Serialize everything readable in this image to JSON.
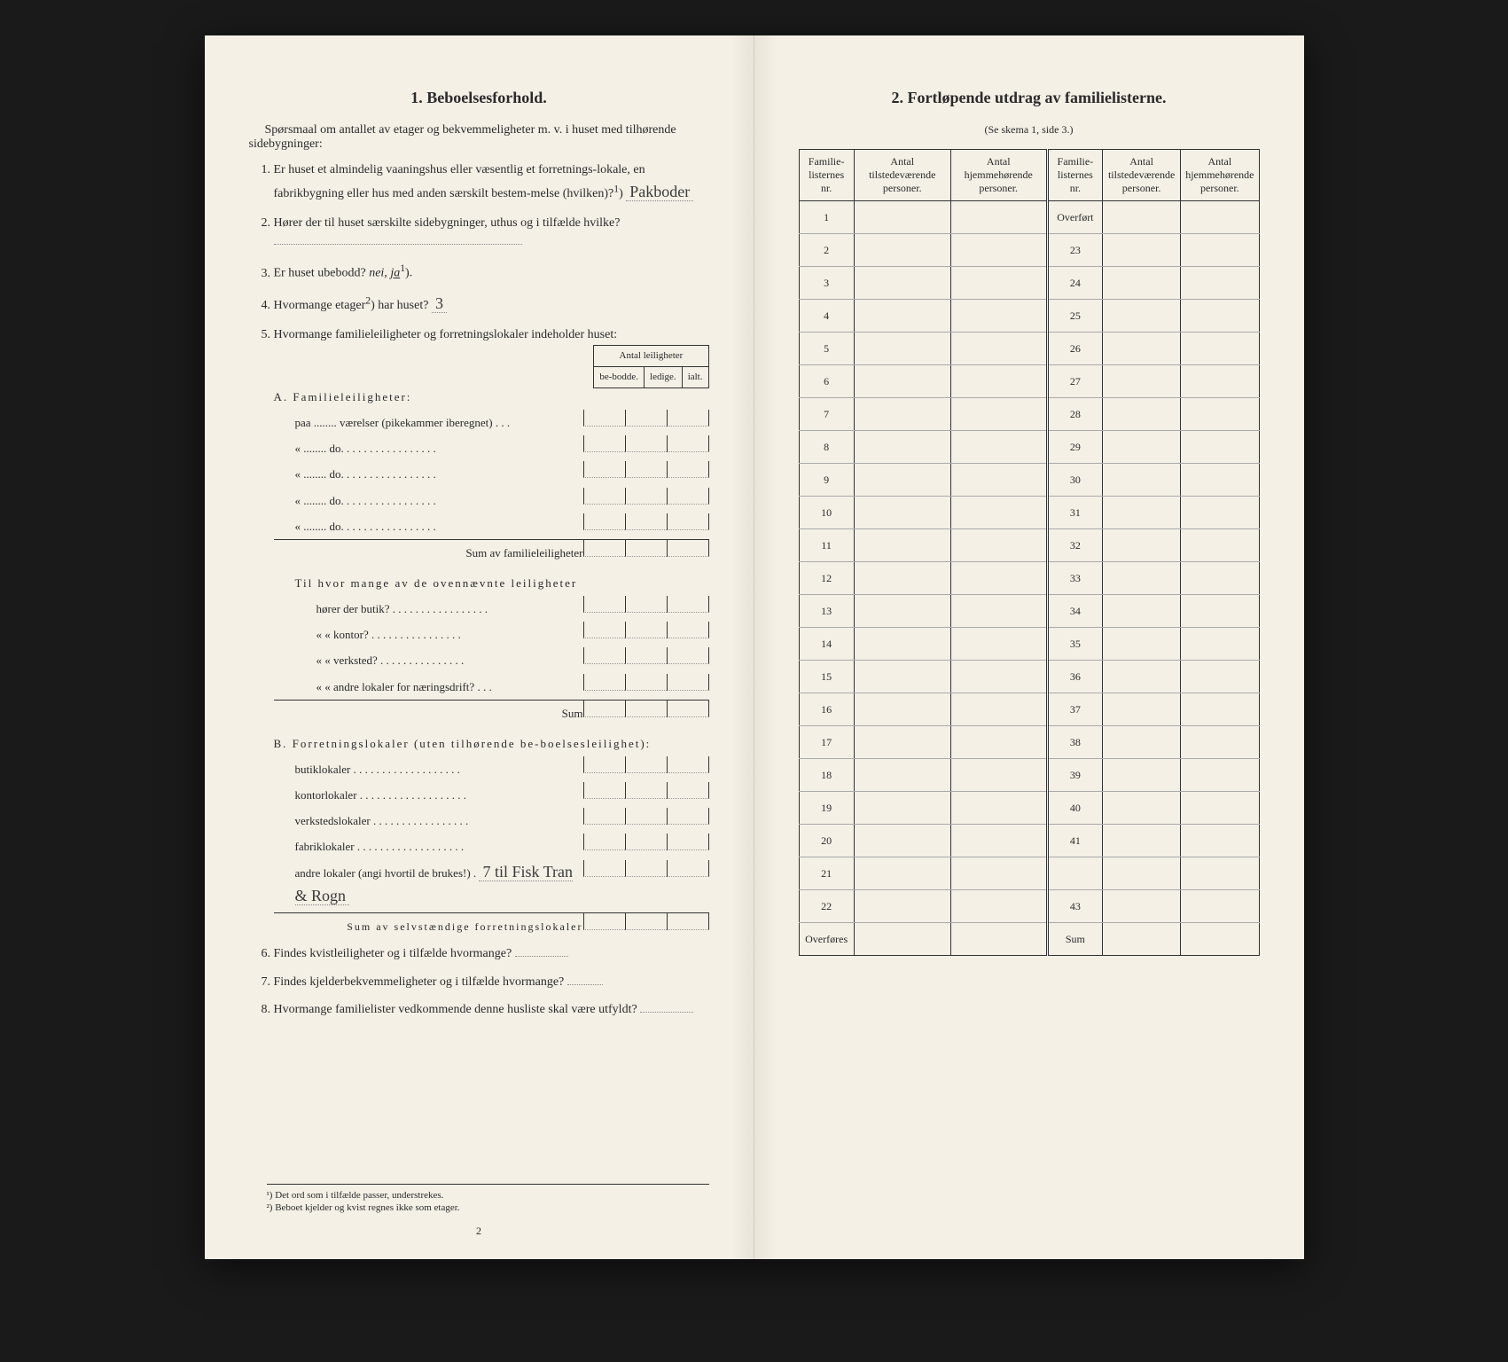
{
  "leftPage": {
    "title": "1.   Beboelsesforhold.",
    "intro": "Spørsmaal om antallet av etager og bekvemmeligheter m. v. i huset med tilhørende sidebygninger:",
    "q1": {
      "text_a": "Er huset et almindelig vaaningshus eller væsentlig et forretnings-lokale, en fabrikbygning eller hus med anden særskilt bestem-melse (hvilken)?",
      "sup": "1",
      "answer": "Pakboder"
    },
    "q2": "Hører der til huset særskilte sidebygninger, uthus og i tilfælde hvilke?",
    "q3": {
      "text": "Er huset ubebodd?",
      "options": "nei, ja",
      "sup": "1",
      "selected": "ja"
    },
    "q4": {
      "text": "Hvormange etager",
      "sup": "2",
      "text2": ") har huset?",
      "answer": "3"
    },
    "q5": {
      "text": "Hvormange familieleiligheter og forretningslokaler indeholder huset:",
      "tableHeader": "Antal leiligheter",
      "cols": [
        "be-bodde.",
        "ledige.",
        "ialt."
      ],
      "sectionA": {
        "title": "A. Familieleiligheter:",
        "rows": [
          "paa ........ værelser (pikekammer iberegnet) . . .",
          "«   ........   do.   . . . . . . . . . . . . . . . .",
          "«   ........   do.   . . . . . . . . . . . . . . . .",
          "«   ........   do.   . . . . . . . . . . . . . . . .",
          "«   ........   do.   . . . . . . . . . . . . . . . ."
        ],
        "sum": "Sum av familieleiligheter"
      },
      "sectionMid": {
        "intro": "Til hvor mange av de ovennævnte leiligheter",
        "rows": [
          "hører der butik? . . . . . . . . . . . . . . . . .",
          "«     «  kontor? . . . . . . . . . . . . . . . .",
          "«     «  verksted? . . . . . . . . . . . . . . .",
          "«     «  andre lokaler for næringsdrift? . . ."
        ],
        "sum": "Sum"
      },
      "sectionB": {
        "title": "B. Forretningslokaler (uten tilhørende be-boelsesleilighet):",
        "rows": [
          "butiklokaler . . . . . . . . . . . . . . . . . . .",
          "kontorlokaler . . . . . . . . . . . . . . . . . . .",
          "verkstedslokaler . . . . . . . . . . . . . . . . .",
          "fabriklokaler . . . . . . . . . . . . . . . . . . .",
          "andre lokaler (angi hvortil de brukes!) ."
        ],
        "handAnswer": "7 til Fisk Tran & Rogn",
        "sum": "Sum av selvstændige forretningslokaler"
      }
    },
    "q6": "Findes kvistleiligheter og i tilfælde hvormange?",
    "q7": "Findes kjelderbekvemmeligheter og i tilfælde hvormange?",
    "q8": "Hvormange familielister vedkommende denne husliste skal være utfyldt?",
    "footnotes": [
      "¹) Det ord som i tilfælde passer, understrekes.",
      "²) Beboet kjelder og kvist regnes ikke som etager."
    ],
    "pageNum": "2"
  },
  "rightPage": {
    "title": "2.   Fortløpende utdrag av familielisterne.",
    "subtitle": "(Se skema 1, side 3.)",
    "headers": {
      "c1": "Familie-listernes nr.",
      "c2": "Antal tilstedeværende personer.",
      "c3": "Antal hjemmehørende personer.",
      "c4": "Familie-listernes nr.",
      "c5": "Antal tilstedeværende personer.",
      "c6": "Antal hjemmehørende personer."
    },
    "leftCol": [
      "1",
      "2",
      "3",
      "4",
      "5",
      "6",
      "7",
      "8",
      "9",
      "10",
      "11",
      "12",
      "13",
      "14",
      "15",
      "16",
      "17",
      "18",
      "19",
      "20",
      "21",
      "22",
      "Overføres"
    ],
    "rightCol": [
      "Overført",
      "23",
      "24",
      "25",
      "26",
      "27",
      "28",
      "29",
      "30",
      "31",
      "32",
      "33",
      "34",
      "35",
      "36",
      "37",
      "38",
      "39",
      "40",
      "41",
      "",
      "43",
      "Sum"
    ]
  }
}
